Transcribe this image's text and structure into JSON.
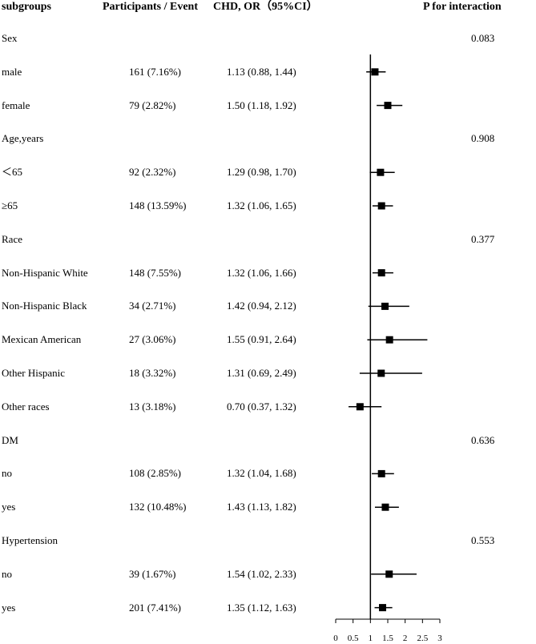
{
  "chart_data": {
    "type": "forest",
    "headers": {
      "subgroups": "subgroups",
      "participants": "Participants / Event",
      "or": "CHD, OR（95%CI）",
      "p": "P for interaction"
    },
    "rows": [
      {
        "label": "Sex",
        "participants": "",
        "or_text": "",
        "p": "0.083",
        "or": null,
        "lo": null,
        "hi": null
      },
      {
        "label": "male",
        "participants": "161 (7.16%)",
        "or_text": "1.13 (0.88, 1.44)",
        "p": "",
        "or": 1.13,
        "lo": 0.88,
        "hi": 1.44
      },
      {
        "label": "female",
        "participants": "79 (2.82%)",
        "or_text": "1.50 (1.18, 1.92)",
        "p": "",
        "or": 1.5,
        "lo": 1.18,
        "hi": 1.92
      },
      {
        "label": "Age,years",
        "participants": "",
        "or_text": "",
        "p": "0.908",
        "or": null,
        "lo": null,
        "hi": null
      },
      {
        "label": "＜65",
        "participants": "92 (2.32%)",
        "or_text": "1.29 (0.98, 1.70)",
        "p": "",
        "or": 1.29,
        "lo": 0.98,
        "hi": 1.7
      },
      {
        "label": "≥65",
        "participants": "148 (13.59%)",
        "or_text": "1.32 (1.06, 1.65)",
        "p": "",
        "or": 1.32,
        "lo": 1.06,
        "hi": 1.65
      },
      {
        "label": "Race",
        "participants": "",
        "or_text": "",
        "p": "0.377",
        "or": null,
        "lo": null,
        "hi": null
      },
      {
        "label": "Non-Hispanic White",
        "participants": "148 (7.55%)",
        "or_text": "1.32 (1.06, 1.66)",
        "p": "",
        "or": 1.32,
        "lo": 1.06,
        "hi": 1.66
      },
      {
        "label": "Non-Hispanic Black",
        "participants": "34 (2.71%)",
        "or_text": "1.42 (0.94, 2.12)",
        "p": "",
        "or": 1.42,
        "lo": 0.94,
        "hi": 2.12
      },
      {
        "label": "Mexican American",
        "participants": "27 (3.06%)",
        "or_text": "1.55 (0.91, 2.64)",
        "p": "",
        "or": 1.55,
        "lo": 0.91,
        "hi": 2.64
      },
      {
        "label": "Other Hispanic",
        "participants": "18 (3.32%)",
        "or_text": "1.31 (0.69, 2.49)",
        "p": "",
        "or": 1.31,
        "lo": 0.69,
        "hi": 2.49
      },
      {
        "label": "Other races",
        "participants": "13 (3.18%)",
        "or_text": "0.70 (0.37, 1.32)",
        "p": "",
        "or": 0.7,
        "lo": 0.37,
        "hi": 1.32
      },
      {
        "label": "DM",
        "participants": "",
        "or_text": "",
        "p": "0.636",
        "or": null,
        "lo": null,
        "hi": null
      },
      {
        "label": "no",
        "participants": "108 (2.85%)",
        "or_text": "1.32 (1.04, 1.68)",
        "p": "",
        "or": 1.32,
        "lo": 1.04,
        "hi": 1.68
      },
      {
        "label": "yes",
        "participants": "132 (10.48%)",
        "or_text": "1.43 (1.13, 1.82)",
        "p": "",
        "or": 1.43,
        "lo": 1.13,
        "hi": 1.82
      },
      {
        "label": "Hypertension",
        "participants": "",
        "or_text": "",
        "p": "0.553",
        "or": null,
        "lo": null,
        "hi": null
      },
      {
        "label": "no",
        "participants": "39 (1.67%)",
        "or_text": "1.54 (1.02, 2.33)",
        "p": "",
        "or": 1.54,
        "lo": 1.02,
        "hi": 2.33
      },
      {
        "label": "yes",
        "participants": "201 (7.41%)",
        "or_text": "1.35 (1.12, 1.63)",
        "p": "",
        "or": 1.35,
        "lo": 1.12,
        "hi": 1.63
      }
    ],
    "xlim": [
      0,
      3
    ],
    "xticks": [
      0,
      0.5,
      1,
      1.5,
      2,
      2.5,
      3
    ],
    "xtick_labels": [
      "0",
      "0.5",
      "1",
      "1.5",
      "2",
      "2.5",
      "3"
    ],
    "reference_line": 1
  }
}
